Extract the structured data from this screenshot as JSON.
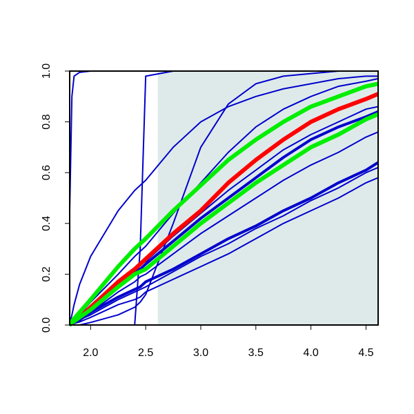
{
  "chart_data": {
    "type": "line",
    "x": [
      1.81,
      1.83,
      1.85,
      1.9,
      2.0,
      2.25,
      2.4,
      2.45,
      2.5,
      2.75,
      3.0,
      3.25,
      3.5,
      3.75,
      4.0,
      4.25,
      4.5,
      4.61
    ],
    "shaded_xrange": [
      2.61,
      4.61
    ],
    "shade_color": "#deeaea",
    "series": [
      {
        "color": "#0000cc",
        "width": 2,
        "values": [
          0.45,
          0.9,
          0.98,
          0.995,
          1,
          1,
          1,
          1,
          1,
          1,
          1,
          1,
          1,
          1,
          1,
          1,
          1,
          1
        ]
      },
      {
        "color": "#0000cc",
        "width": 2,
        "values": [
          0,
          0,
          0,
          0,
          0,
          0,
          0,
          0.3,
          0.98,
          1,
          1,
          1,
          1,
          1,
          1,
          1,
          1,
          1
        ]
      },
      {
        "color": "#0000cc",
        "width": 2,
        "values": [
          0,
          0.04,
          0.08,
          0.16,
          0.27,
          0.45,
          0.53,
          0.55,
          0.57,
          0.7,
          0.8,
          0.86,
          0.9,
          0.93,
          0.95,
          0.97,
          0.98,
          0.98
        ]
      },
      {
        "color": "#0000cc",
        "width": 2,
        "values": [
          0,
          0,
          0,
          0,
          0.01,
          0.04,
          0.07,
          0.09,
          0.12,
          0.4,
          0.7,
          0.87,
          0.95,
          0.98,
          0.99,
          1,
          1,
          1
        ]
      },
      {
        "color": "#0000cc",
        "width": 2,
        "values": [
          0,
          0.01,
          0.02,
          0.04,
          0.09,
          0.2,
          0.27,
          0.29,
          0.31,
          0.44,
          0.56,
          0.68,
          0.78,
          0.85,
          0.9,
          0.94,
          0.96,
          0.97
        ]
      },
      {
        "color": "#0000cc",
        "width": 4,
        "values": [
          0,
          0.01,
          0.015,
          0.03,
          0.06,
          0.16,
          0.21,
          0.22,
          0.24,
          0.33,
          0.42,
          0.5,
          0.58,
          0.66,
          0.73,
          0.78,
          0.82,
          0.84
        ]
      },
      {
        "color": "#0000cc",
        "width": 2,
        "values": [
          0,
          0.01,
          0.015,
          0.03,
          0.07,
          0.17,
          0.22,
          0.24,
          0.25,
          0.35,
          0.44,
          0.53,
          0.61,
          0.69,
          0.75,
          0.8,
          0.85,
          0.86
        ]
      },
      {
        "color": "#0000cc",
        "width": 2,
        "values": [
          0,
          0.005,
          0.01,
          0.02,
          0.05,
          0.13,
          0.17,
          0.19,
          0.2,
          0.28,
          0.36,
          0.43,
          0.5,
          0.57,
          0.63,
          0.68,
          0.74,
          0.76
        ]
      },
      {
        "color": "#0000cc",
        "width": 4,
        "values": [
          0,
          0.005,
          0.01,
          0.02,
          0.05,
          0.11,
          0.14,
          0.15,
          0.17,
          0.22,
          0.28,
          0.34,
          0.39,
          0.45,
          0.5,
          0.56,
          0.61,
          0.64
        ]
      },
      {
        "color": "#0000cc",
        "width": 2,
        "values": [
          0,
          0.005,
          0.01,
          0.02,
          0.04,
          0.1,
          0.13,
          0.14,
          0.15,
          0.21,
          0.27,
          0.32,
          0.38,
          0.43,
          0.49,
          0.54,
          0.6,
          0.62
        ]
      },
      {
        "color": "#0000cc",
        "width": 2,
        "values": [
          0,
          0.003,
          0.006,
          0.012,
          0.03,
          0.08,
          0.1,
          0.11,
          0.13,
          0.18,
          0.23,
          0.28,
          0.34,
          0.4,
          0.45,
          0.5,
          0.56,
          0.58
        ]
      },
      {
        "color": "#ff0000",
        "width": 6,
        "values": [
          0,
          0.01,
          0.015,
          0.03,
          0.07,
          0.17,
          0.22,
          0.24,
          0.26,
          0.36,
          0.45,
          0.56,
          0.65,
          0.73,
          0.8,
          0.85,
          0.89,
          0.91
        ]
      },
      {
        "color": "#00ee00",
        "width": 6,
        "values": [
          0,
          0.015,
          0.025,
          0.05,
          0.1,
          0.23,
          0.3,
          0.32,
          0.34,
          0.45,
          0.55,
          0.65,
          0.73,
          0.8,
          0.86,
          0.9,
          0.94,
          0.95
        ]
      },
      {
        "color": "#00ee00",
        "width": 6,
        "values": [
          0,
          0.01,
          0.015,
          0.03,
          0.06,
          0.15,
          0.2,
          0.21,
          0.22,
          0.31,
          0.4,
          0.48,
          0.56,
          0.63,
          0.7,
          0.75,
          0.81,
          0.83
        ]
      }
    ],
    "xlim": [
      1.81,
      4.61
    ],
    "ylim": [
      0,
      1
    ],
    "xticks": [
      {
        "value": 2,
        "label": "2.0"
      },
      2.5,
      {
        "value": 3,
        "label": "3.0"
      },
      3.5,
      {
        "value": 4,
        "label": "4.0"
      },
      4.5
    ],
    "yticks": [
      {
        "value": 0,
        "label": "0.0"
      },
      0.2,
      0.4,
      0.6,
      0.8,
      {
        "value": 1,
        "label": "1.0"
      }
    ]
  }
}
